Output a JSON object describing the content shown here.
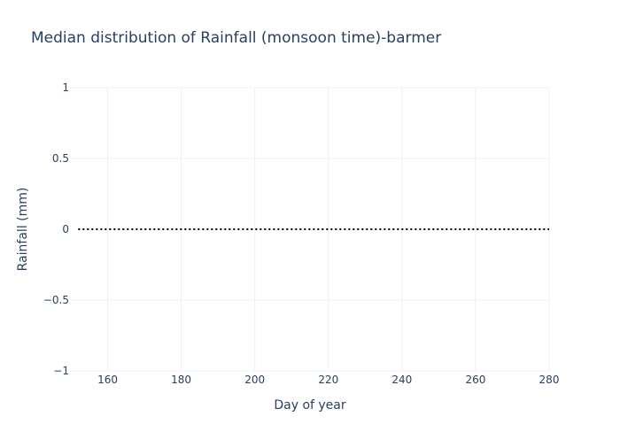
{
  "chart_data": {
    "type": "line",
    "title": "Median distribution of Rainfall (monsoon time)-barmer",
    "xlabel": "Day of year",
    "ylabel": "Rainfall (mm)",
    "xlim": [
      150,
      280
    ],
    "ylim": [
      -1,
      1
    ],
    "x_ticks": [
      160,
      180,
      200,
      220,
      240,
      260,
      280
    ],
    "y_ticks": [
      1,
      0.5,
      0,
      -0.5,
      -1
    ],
    "y_tick_labels": [
      "1",
      "0.5",
      "0",
      "−0.5",
      "−1"
    ],
    "grid": true,
    "series": [
      {
        "line_style": "dotted",
        "color": "#000000",
        "x": [
          152,
          160,
          170,
          180,
          190,
          200,
          210,
          220,
          230,
          240,
          250,
          260,
          270,
          280
        ],
        "y": [
          0,
          0,
          0,
          0,
          0,
          0,
          0,
          0,
          0,
          0,
          0,
          0,
          0,
          0
        ]
      }
    ]
  },
  "colors": {
    "grid": "#ebf0f8",
    "text": "#2a3f5f"
  }
}
